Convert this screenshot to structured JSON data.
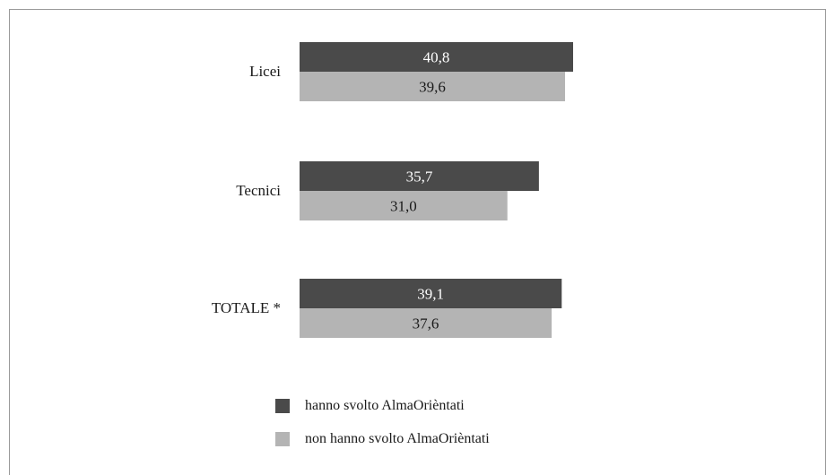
{
  "chart_data": {
    "type": "bar",
    "orientation": "horizontal",
    "categories": [
      "Licei",
      "Tecnici",
      "TOTALE *"
    ],
    "series": [
      {
        "name": "hanno svolto AlmaOrièntati",
        "values": [
          40.8,
          35.7,
          39.1
        ],
        "labels": [
          "40,8",
          "35,7",
          "39,1"
        ],
        "color": "#4a4a4a",
        "label_color": "#ffffff"
      },
      {
        "name": "non hanno svolto AlmaOrièntati",
        "values": [
          39.6,
          31.0,
          37.6
        ],
        "labels": [
          "39,6",
          "31,0",
          "37,6"
        ],
        "color": "#b4b4b4",
        "label_color": "#1a1a1a"
      }
    ],
    "xlim": [
      0,
      40.8
    ],
    "grid": false,
    "legend": "bottom"
  }
}
